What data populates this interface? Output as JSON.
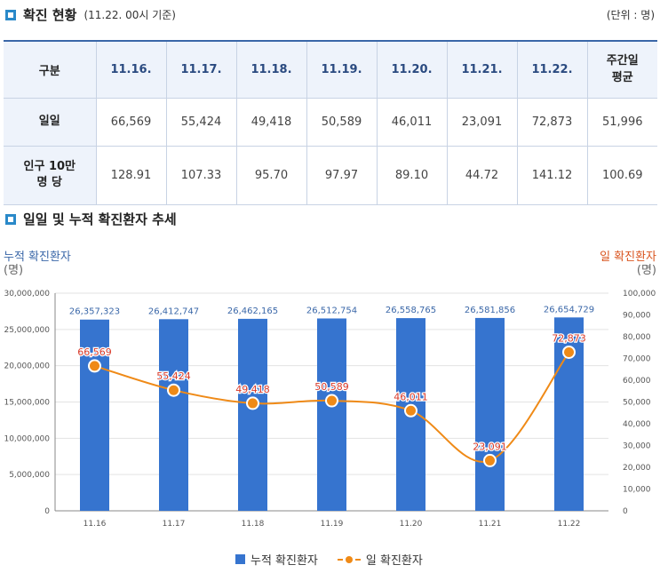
{
  "header": {
    "title": "확진 현황",
    "subtitle": "(11.22. 00시 기준)",
    "unit": "(단위 : 명)"
  },
  "table": {
    "columns": [
      "구분",
      "11.16.",
      "11.17.",
      "11.18.",
      "11.19.",
      "11.20.",
      "11.21.",
      "11.22.",
      "주간일 평균"
    ],
    "rows": [
      {
        "label": "일일",
        "cells": [
          "66,569",
          "55,424",
          "49,418",
          "50,589",
          "46,011",
          "23,091",
          "72,873",
          "51,996"
        ]
      },
      {
        "label": "인구 10만 명 당",
        "cells": [
          "128.91",
          "107.33",
          "95.70",
          "97.97",
          "89.10",
          "44.72",
          "141.12",
          "100.69"
        ]
      }
    ]
  },
  "trend": {
    "title": "일일 및 누적 확진환자 추세",
    "left_axis_title": "누적 확진환자",
    "left_axis_unit": "(명)",
    "right_axis_title": "일 확진환자",
    "right_axis_unit": "(명)"
  },
  "chart_data": {
    "type": "bar+line",
    "title": "일일 및 누적 확진환자 추세",
    "categories": [
      "11.16",
      "11.17",
      "11.18",
      "11.19",
      "11.20",
      "11.21",
      "11.22"
    ],
    "series": [
      {
        "name": "누적 확진환자",
        "type": "bar",
        "axis": "left",
        "color": "#3674cf",
        "values": [
          26357323,
          26412747,
          26462165,
          26512754,
          26558765,
          26581856,
          26654729
        ],
        "labels": [
          "26,357,323",
          "26,412,747",
          "26,462,165",
          "26,512,754",
          "26,558,765",
          "26,581,856",
          "26,654,729"
        ]
      },
      {
        "name": "일 확진환자",
        "type": "line",
        "axis": "right",
        "color": "#ef8a17",
        "values": [
          66569,
          55424,
          49418,
          50589,
          46011,
          23091,
          72873
        ],
        "labels": [
          "66,569",
          "55,424",
          "49,418",
          "50,589",
          "46,011",
          "23,091",
          "72,873"
        ]
      }
    ],
    "left_axis": {
      "min": 0,
      "max": 30000000,
      "ticks": [
        0,
        5000000,
        10000000,
        15000000,
        20000000,
        25000000,
        30000000
      ],
      "tick_labels": [
        "0",
        "5,000,000",
        "10,000,000",
        "15,000,000",
        "20,000,000",
        "25,000,000",
        "30,000,000"
      ]
    },
    "right_axis": {
      "min": 0,
      "max": 100000,
      "ticks": [
        0,
        10000,
        20000,
        30000,
        40000,
        50000,
        60000,
        70000,
        80000,
        90000,
        100000
      ],
      "tick_labels": [
        "0",
        "10,000",
        "20,000",
        "30,000",
        "40,000",
        "50,000",
        "60,000",
        "70,000",
        "80,000",
        "90,000",
        "100,000"
      ]
    },
    "grid": true,
    "legend": "bottom-center"
  },
  "colors": {
    "accent": "#2a89c9",
    "bar": "#3674cf",
    "line": "#ef8a17",
    "left_axis_text": "#3a67a8",
    "right_axis_text": "#d9541e",
    "line_label": "#d83a2a"
  }
}
